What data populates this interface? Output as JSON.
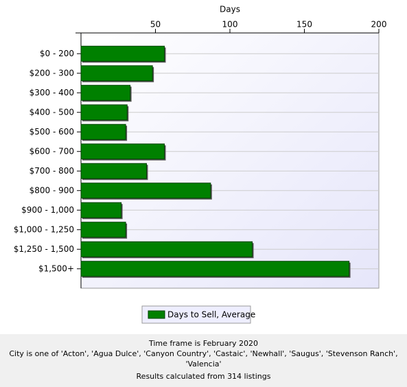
{
  "chart_data": {
    "type": "hbar",
    "x_label": "Days",
    "categories": [
      "$0 - 200",
      "$200 - 300",
      "$300 - 400",
      "$400 - 500",
      "$500 - 600",
      "$600 - 700",
      "$700 - 800",
      "$800 - 900",
      "$900 - 1,000",
      "$1,000 - 1,250",
      "$1,250 - 1,500",
      "$1,500+"
    ],
    "series": [
      {
        "name": "Days to Sell, Average",
        "color": "#008000",
        "values": [
          56,
          48,
          33,
          31,
          30,
          56,
          44,
          87,
          27,
          30,
          115,
          180
        ]
      }
    ],
    "xlim": [
      0,
      200
    ],
    "xticks": [
      50,
      100,
      150,
      200
    ]
  },
  "footer": {
    "lines": [
      "Time frame is February 2020",
      "City is one of 'Acton', 'Agua Dulce', 'Canyon Country', 'Castaic', 'Newhall', 'Saugus', 'Stevenson Ranch', 'Valencia'",
      "Results calculated from 314 listings"
    ]
  }
}
